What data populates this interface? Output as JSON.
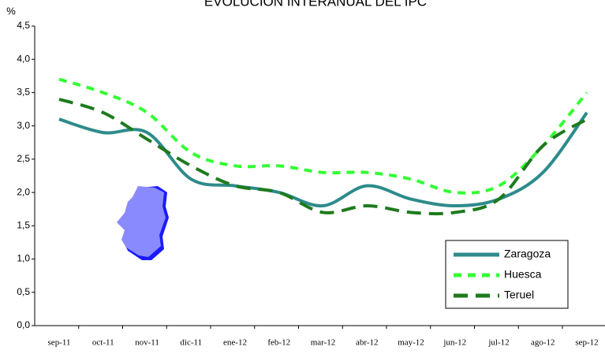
{
  "chart_data": {
    "type": "line",
    "title": "EVOLUCIÓN INTERANUAL DEL IPC",
    "y_label": "%",
    "categories": [
      "sep-11",
      "oct-11",
      "nov-11",
      "dic-11",
      "ene-12",
      "feb-12",
      "mar-12",
      "abr-12",
      "may-12",
      "jun-12",
      "jul-12",
      "ago-12",
      "sep-12"
    ],
    "series": [
      {
        "name": "Zaragoza",
        "color": "#2e8b8b",
        "style": "solid",
        "values": [
          3.1,
          2.9,
          2.9,
          2.2,
          2.1,
          2.0,
          1.8,
          2.1,
          1.9,
          1.8,
          1.9,
          2.3,
          3.2
        ]
      },
      {
        "name": "Huesca",
        "color": "#33ff33",
        "style": "dashed",
        "values": [
          3.7,
          3.5,
          3.2,
          2.6,
          2.4,
          2.4,
          2.3,
          2.3,
          2.2,
          2.0,
          2.1,
          2.7,
          3.5
        ]
      },
      {
        "name": "Teruel",
        "color": "#1e7a1e",
        "style": "dashed",
        "values": [
          3.4,
          3.2,
          2.8,
          2.4,
          2.1,
          2.0,
          1.7,
          1.8,
          1.7,
          1.7,
          1.9,
          2.7,
          3.1
        ]
      }
    ],
    "ylim": [
      0,
      4.5
    ],
    "yticks": [
      {
        "value": 0,
        "label": "0,0"
      },
      {
        "value": 0.5,
        "label": "0,5"
      },
      {
        "value": 1,
        "label": "1,0"
      },
      {
        "value": 1.5,
        "label": "1,5"
      },
      {
        "value": 2,
        "label": "2,0"
      },
      {
        "value": 2.5,
        "label": "2,5"
      },
      {
        "value": 3,
        "label": "3,0"
      },
      {
        "value": 3.5,
        "label": "3,5"
      },
      {
        "value": 4,
        "label": "4,0"
      },
      {
        "value": 4.5,
        "label": "4,5"
      }
    ],
    "grid": false,
    "legend": "lower right"
  }
}
